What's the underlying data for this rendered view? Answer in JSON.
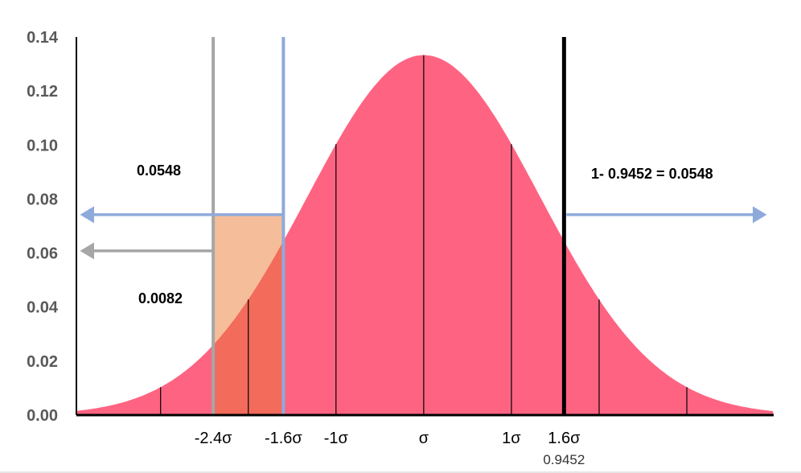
{
  "chart_data": {
    "type": "area",
    "title": "",
    "xlabel": "",
    "ylabel": "",
    "x_unit": "sigma",
    "xlim": [
      -3.96,
      3.99
    ],
    "ylim": [
      0,
      0.14
    ],
    "y_ticks": [
      "0.00",
      "0.02",
      "0.04",
      "0.06",
      "0.08",
      "0.10",
      "0.12",
      "0.14"
    ],
    "curve": {
      "peak": 0.1333,
      "shape_coefficient": 0.284,
      "color": "#fe6482"
    },
    "grid": false,
    "sigma_lines": [
      -3,
      -2,
      -1,
      0,
      1,
      2,
      3
    ],
    "x_tick_labels": [
      {
        "x": -2.4,
        "label": "-2.4σ"
      },
      {
        "x": -1.6,
        "label": "-1.6σ"
      },
      {
        "x": -1,
        "label": "-1σ"
      },
      {
        "x": 0,
        "label": "σ"
      },
      {
        "x": 1,
        "label": "1σ"
      },
      {
        "x": 1.6,
        "label": "1.6σ"
      }
    ],
    "sub_label": {
      "x": 1.6,
      "label": "0.9452"
    },
    "markers": [
      {
        "x": -2.4,
        "color": "#a6a6a6",
        "arrow_y": 0.0608,
        "arrow_dir": "left"
      },
      {
        "x": -1.6,
        "color": "#8eaadb",
        "arrow_y": 0.0742,
        "arrow_dir": "left"
      },
      {
        "x": 1.6,
        "color": "#000000",
        "arrow_y": 0.0742,
        "arrow_dir": "right",
        "arrow_color": "#8eaadb"
      }
    ],
    "highlight": {
      "x_from": -2.4,
      "x_to": -1.6,
      "top": 0.0742,
      "above_curve_color": "#f6bd9a",
      "below_curve_color": "#f26b5b"
    },
    "annotations": [
      {
        "text": "0.0548",
        "position": "upper-left"
      },
      {
        "text": "0.0082",
        "position": "lower-left"
      },
      {
        "text": "1- 0.9452 = 0.0548",
        "position": "right"
      }
    ]
  }
}
